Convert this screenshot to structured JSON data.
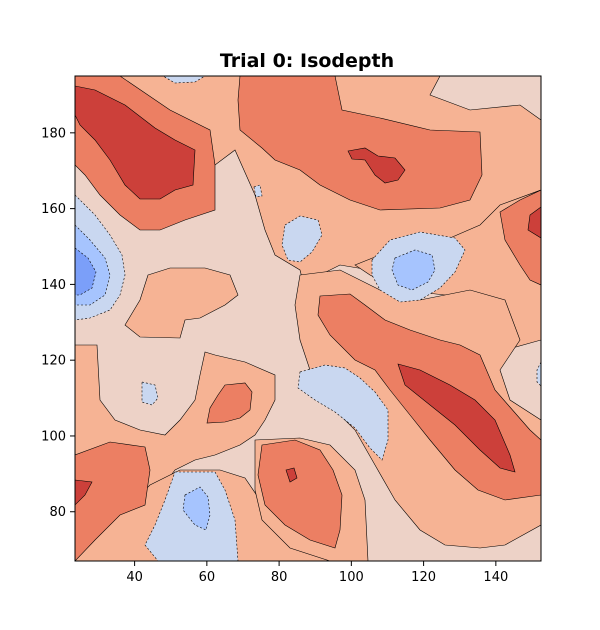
{
  "chart_data": {
    "type": "contour",
    "title": "Trial 0: Isodepth",
    "xlabel": "",
    "ylabel": "",
    "xlim": [
      23.5,
      152.5
    ],
    "ylim": [
      67,
      195
    ],
    "x_ticks": [
      40,
      60,
      80,
      100,
      120,
      140
    ],
    "y_ticks": [
      80,
      100,
      120,
      140,
      160,
      180
    ],
    "colormap": "coolwarm",
    "level_colors": {
      "blue_strong": "#7b9ff9",
      "blue_mid": "#a6c4fe",
      "blue_light": "#c9d7f0",
      "neutral": "#edd2c7",
      "orange_light": "#f6b394",
      "orange": "#ec7f63",
      "red": "#cc403a"
    },
    "grid": false,
    "legend": "none"
  }
}
